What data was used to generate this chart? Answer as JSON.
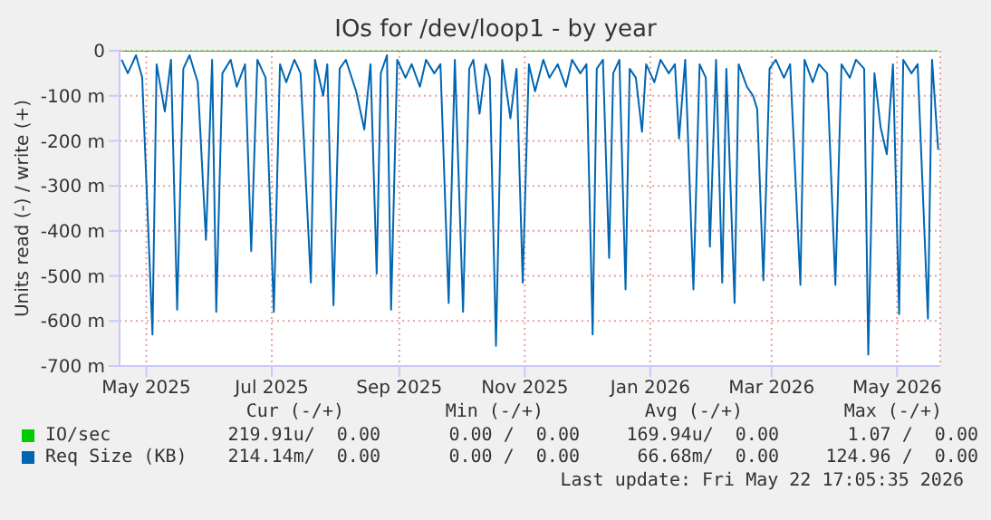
{
  "chart_data": {
    "type": "line",
    "title": "IOs for /dev/loop1 - by year",
    "ylabel": "Units read (-) / write (+)",
    "xlim": [
      "2025-04-18",
      "2026-05-22"
    ],
    "xticks": [
      {
        "value": "2025-05-01",
        "label": "May 2025"
      },
      {
        "value": "2025-07-01",
        "label": "Jul 2025"
      },
      {
        "value": "2025-09-01",
        "label": "Sep 2025"
      },
      {
        "value": "2025-11-01",
        "label": "Nov 2025"
      },
      {
        "value": "2026-01-01",
        "label": "Jan 2026"
      },
      {
        "value": "2026-03-01",
        "label": "Mar 2026"
      },
      {
        "value": "2026-05-01",
        "label": "May 2026"
      }
    ],
    "ylim": [
      -700,
      0
    ],
    "yticks": [
      {
        "value": -700,
        "label": "-700 m"
      },
      {
        "value": -600,
        "label": "-600 m"
      },
      {
        "value": -500,
        "label": "-500 m"
      },
      {
        "value": -400,
        "label": "-400 m"
      },
      {
        "value": -300,
        "label": "-300 m"
      },
      {
        "value": -200,
        "label": "-200 m"
      },
      {
        "value": -100,
        "label": "-100 m"
      },
      0
    ],
    "grid": true,
    "legend": "bottom",
    "marker": "none",
    "line_style": "solid",
    "series": [
      {
        "name": "IO/sec",
        "color": "#00cc00",
        "x": [
          "2025-04-19",
          "2026-05-21"
        ],
        "values": [
          0,
          0
        ]
      },
      {
        "name": "Req Size (KB)",
        "color": "#0066b3",
        "x": [
          "2025-04-19",
          "2025-04-22",
          "2025-04-26",
          "2025-04-29",
          "2025-05-04",
          "2025-05-06",
          "2025-05-10",
          "2025-05-13",
          "2025-05-16",
          "2025-05-19",
          "2025-05-22",
          "2025-05-26",
          "2025-05-30",
          "2025-06-02",
          "2025-06-04",
          "2025-06-07",
          "2025-06-11",
          "2025-06-14",
          "2025-06-18",
          "2025-06-21",
          "2025-06-24",
          "2025-06-28",
          "2025-07-02",
          "2025-07-05",
          "2025-07-08",
          "2025-07-12",
          "2025-07-15",
          "2025-07-20",
          "2025-07-22",
          "2025-07-26",
          "2025-07-28",
          "2025-07-31",
          "2025-08-03",
          "2025-08-06",
          "2025-08-11",
          "2025-08-15",
          "2025-08-18",
          "2025-08-21",
          "2025-08-23",
          "2025-08-26",
          "2025-08-28",
          "2025-08-31",
          "2025-09-04",
          "2025-09-07",
          "2025-09-11",
          "2025-09-14",
          "2025-09-18",
          "2025-09-21",
          "2025-09-25",
          "2025-09-28",
          "2025-10-02",
          "2025-10-05",
          "2025-10-07",
          "2025-10-10",
          "2025-10-13",
          "2025-10-15",
          "2025-10-18",
          "2025-10-21",
          "2025-10-25",
          "2025-10-28",
          "2025-10-31",
          "2025-11-03",
          "2025-11-06",
          "2025-11-10",
          "2025-11-13",
          "2025-11-17",
          "2025-11-21",
          "2025-11-24",
          "2025-11-28",
          "2025-12-01",
          "2025-12-04",
          "2025-12-06",
          "2025-12-09",
          "2025-12-12",
          "2025-12-14",
          "2025-12-17",
          "2025-12-20",
          "2025-12-22",
          "2025-12-25",
          "2025-12-28",
          "2025-12-30",
          "2026-01-03",
          "2026-01-06",
          "2026-01-10",
          "2026-01-13",
          "2026-01-15",
          "2026-01-18",
          "2026-01-22",
          "2026-01-25",
          "2026-01-28",
          "2026-01-30",
          "2026-02-02",
          "2026-02-05",
          "2026-02-07",
          "2026-02-11",
          "2026-02-13",
          "2026-02-17",
          "2026-02-20",
          "2026-02-22",
          "2026-02-25",
          "2026-02-28",
          "2026-03-03",
          "2026-03-07",
          "2026-03-10",
          "2026-03-15",
          "2026-03-17",
          "2026-03-21",
          "2026-03-24",
          "2026-03-28",
          "2026-04-01",
          "2026-04-04",
          "2026-04-08",
          "2026-04-11",
          "2026-04-15",
          "2026-04-17",
          "2026-04-20",
          "2026-04-23",
          "2026-04-26",
          "2026-04-29",
          "2026-05-02",
          "2026-05-04",
          "2026-05-08",
          "2026-05-11",
          "2026-05-16",
          "2026-05-18",
          "2026-05-21"
        ],
        "values": [
          -20,
          -50,
          -10,
          -60,
          -630,
          -30,
          -135,
          -20,
          -575,
          -40,
          -10,
          -70,
          -420,
          -20,
          -580,
          -50,
          -20,
          -80,
          -30,
          -445,
          -20,
          -60,
          -580,
          -30,
          -70,
          -20,
          -50,
          -515,
          -20,
          -100,
          -30,
          -565,
          -40,
          -20,
          -90,
          -175,
          -30,
          -495,
          -50,
          -10,
          -575,
          -20,
          -60,
          -30,
          -80,
          -20,
          -50,
          -30,
          -560,
          -20,
          -580,
          -40,
          -20,
          -140,
          -30,
          -60,
          -655,
          -20,
          -150,
          -40,
          -515,
          -30,
          -90,
          -20,
          -60,
          -30,
          -80,
          -20,
          -50,
          -30,
          -630,
          -40,
          -20,
          -460,
          -50,
          -20,
          -530,
          -40,
          -60,
          -180,
          -30,
          -70,
          -20,
          -50,
          -30,
          -195,
          -20,
          -530,
          -30,
          -60,
          -435,
          -20,
          -515,
          -40,
          -560,
          -30,
          -80,
          -100,
          -130,
          -510,
          -40,
          -20,
          -60,
          -30,
          -520,
          -20,
          -70,
          -30,
          -50,
          -520,
          -30,
          -60,
          -20,
          -40,
          -675,
          -50,
          -170,
          -230,
          -30,
          -585,
          -20,
          -50,
          -30,
          -595,
          -20,
          -220
        ]
      }
    ],
    "annotations": [
      "Cur (-/+)",
      "Min (-/+)",
      "Avg (-/+)",
      "Max (-/+)",
      "219.91u/  0.00",
      "0.00 /  0.00",
      "169.94u/  0.00",
      "1.07 /  0.00",
      "214.14m/  0.00",
      "0.00 /  0.00",
      "66.68m/  0.00",
      "124.96 /  0.00",
      "Last update: Fri May 22 17:05:35 2026"
    ]
  }
}
